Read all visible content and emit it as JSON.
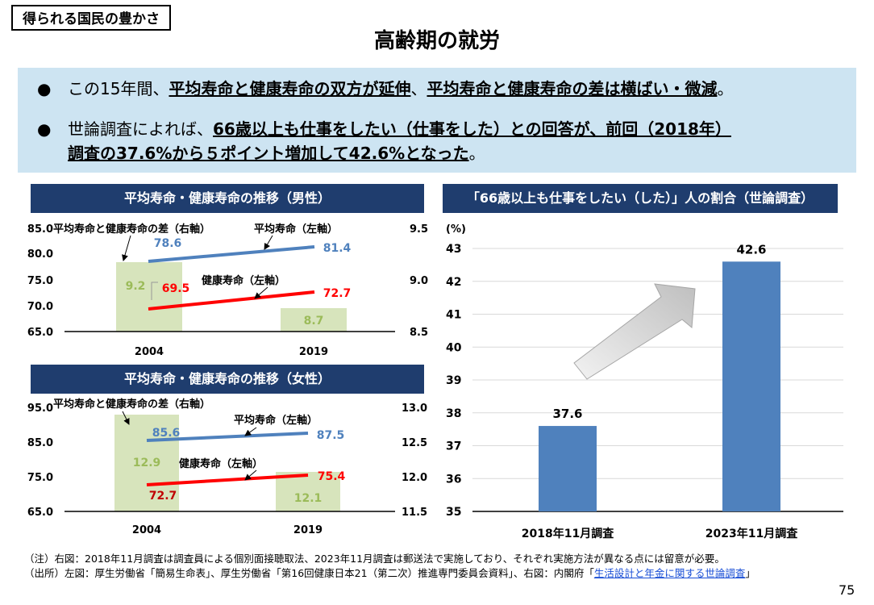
{
  "header": {
    "tag": "得られる国民の豊かさ",
    "title": "高齢期の就労"
  },
  "summary": {
    "bullet_symbol": "●",
    "b1_pre": "この15年間、",
    "b1_u1": "平均寿命と健康寿命の双方が延伸",
    "b1_mid": "、",
    "b1_u2": "平均寿命と健康寿命の差は横ばい・微減",
    "b1_end": "。",
    "b2_pre": "世論調査によれば、",
    "b2_u1": "66歳以上も仕事をしたい（仕事をした）との回答が、前回（2018年）",
    "b2_u2": "調査の37.6%から５ポイント増加して42.6%となった",
    "b2_end": "。"
  },
  "male_chart": {
    "title": "平均寿命・健康寿命の推移（男性）",
    "left_ticks": [
      "85.0",
      "80.0",
      "75.0",
      "70.0",
      "65.0"
    ],
    "right_ticks": [
      "9.5",
      "9.0",
      "8.5"
    ],
    "x_labels": [
      "2004",
      "2019"
    ],
    "label_gap": "平均寿命と健康寿命の差（右軸）",
    "label_avg": "平均寿命（左軸）",
    "label_healthy": "健康寿命（左軸）",
    "avg": [
      "78.6",
      "81.4"
    ],
    "healthy": [
      "69.5",
      "72.7"
    ],
    "gap": [
      "9.2",
      "8.7"
    ]
  },
  "female_chart": {
    "title": "平均寿命・健康寿命の推移（女性）",
    "left_ticks": [
      "95.0",
      "85.0",
      "75.0",
      "65.0"
    ],
    "right_ticks": [
      "13.0",
      "12.5",
      "12.0",
      "11.5"
    ],
    "x_labels": [
      "2004",
      "2019"
    ],
    "label_gap": "平均寿命と健康寿命の差（右軸）",
    "label_avg": "平均寿命（左軸）",
    "label_healthy": "健康寿命（左軸）",
    "avg": [
      "85.6",
      "87.5"
    ],
    "healthy": [
      "72.7",
      "75.4"
    ],
    "gap": [
      "12.9",
      "12.1"
    ]
  },
  "right_chart": {
    "title": "「66歳以上も仕事をしたい（した）」人の割合（世論調査）",
    "unit": "(%)"
  },
  "chart_data": [
    {
      "type": "line",
      "title": "平均寿命・健康寿命の推移（男性）",
      "categories": [
        "2004",
        "2019"
      ],
      "series": [
        {
          "name": "平均寿命（左軸）",
          "values": [
            78.6,
            81.4
          ]
        },
        {
          "name": "健康寿命（左軸）",
          "values": [
            69.5,
            72.7
          ]
        },
        {
          "name": "平均寿命と健康寿命の差（右軸）",
          "values": [
            9.2,
            8.7
          ],
          "type": "bar"
        }
      ],
      "ylim": [
        65,
        85
      ],
      "y2lim": [
        8.5,
        9.5
      ]
    },
    {
      "type": "line",
      "title": "平均寿命・健康寿命の推移（女性）",
      "categories": [
        "2004",
        "2019"
      ],
      "series": [
        {
          "name": "平均寿命（左軸）",
          "values": [
            85.6,
            87.5
          ]
        },
        {
          "name": "健康寿命（左軸）",
          "values": [
            72.7,
            75.4
          ]
        },
        {
          "name": "平均寿命と健康寿命の差（右軸）",
          "values": [
            12.9,
            12.1
          ],
          "type": "bar"
        }
      ],
      "ylim": [
        65,
        95
      ],
      "y2lim": [
        11.5,
        13
      ]
    },
    {
      "type": "bar",
      "title": "「66歳以上も仕事をしたい（した）」人の割合（世論調査）",
      "categories": [
        "2018年11月調査",
        "2023年11月調査"
      ],
      "values": [
        37.6,
        42.6
      ],
      "value_labels": [
        "37.6",
        "42.6"
      ],
      "y_ticks": [
        "43",
        "42",
        "41",
        "40",
        "39",
        "38",
        "37",
        "36",
        "35"
      ],
      "ylim": [
        35,
        43
      ],
      "ylabel": "(%)",
      "grid": true
    }
  ],
  "notes": {
    "line1": "（注）右図：2018年11月調査は調査員による個別面接聴取法、2023年11月調査は郵送法で実施しており、それぞれ実施方法が異なる点には留意が必要。",
    "line2_pre": "（出所）左図：厚生労働省「簡易生命表」、厚生労働省「第16回健康日本21（第二次）推進専門委員会資料」、右図：内閣府「",
    "line2_link": "生活設計と年金に関する世論調査",
    "line2_post": "」"
  },
  "page_number": "75",
  "colors": {
    "navy": "#1f3d6e",
    "summary_bg": "#cde4f2",
    "bar_blue": "#4f81bd",
    "gap_green": "#d7e4bc",
    "gap_label": "#9bbb59",
    "healthy_red": "#ff0000",
    "avg_blue": "#4f81bd"
  }
}
